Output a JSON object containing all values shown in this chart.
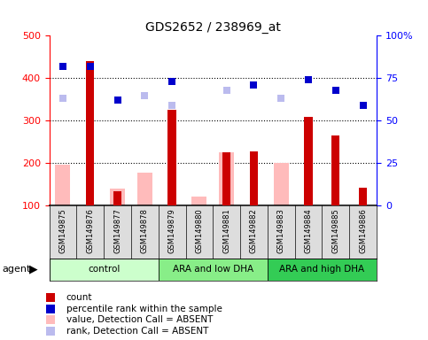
{
  "title": "GDS2652 / 238969_at",
  "samples": [
    "GSM149875",
    "GSM149876",
    "GSM149877",
    "GSM149878",
    "GSM149879",
    "GSM149880",
    "GSM149881",
    "GSM149882",
    "GSM149883",
    "GSM149884",
    "GSM149885",
    "GSM149886"
  ],
  "groups": [
    {
      "label": "control",
      "start": 0,
      "end": 3,
      "color": "#ccffcc"
    },
    {
      "label": "ARA and low DHA",
      "start": 4,
      "end": 7,
      "color": "#88ee88"
    },
    {
      "label": "ARA and high DHA",
      "start": 8,
      "end": 11,
      "color": "#33cc55"
    }
  ],
  "count": [
    null,
    440,
    135,
    null,
    325,
    null,
    225,
    228,
    null,
    310,
    265,
    142
  ],
  "percentile_rank": [
    82,
    82,
    62,
    null,
    73,
    null,
    null,
    71,
    null,
    74,
    68,
    59
  ],
  "value_absent": [
    197,
    null,
    140,
    178,
    null,
    122,
    225,
    null,
    200,
    null,
    null,
    null
  ],
  "rank_absent": [
    63,
    null,
    62,
    65,
    59,
    null,
    68,
    null,
    63,
    null,
    null,
    null
  ],
  "ylim_left": [
    100,
    500
  ],
  "ylim_right": [
    0,
    100
  ],
  "yticks_left": [
    100,
    200,
    300,
    400,
    500
  ],
  "yticks_right": [
    0,
    25,
    50,
    75,
    100
  ],
  "color_count": "#cc0000",
  "color_percentile": "#0000cc",
  "color_value_absent": "#ffbbbb",
  "color_rank_absent": "#bbbbee",
  "marker_size": 6
}
